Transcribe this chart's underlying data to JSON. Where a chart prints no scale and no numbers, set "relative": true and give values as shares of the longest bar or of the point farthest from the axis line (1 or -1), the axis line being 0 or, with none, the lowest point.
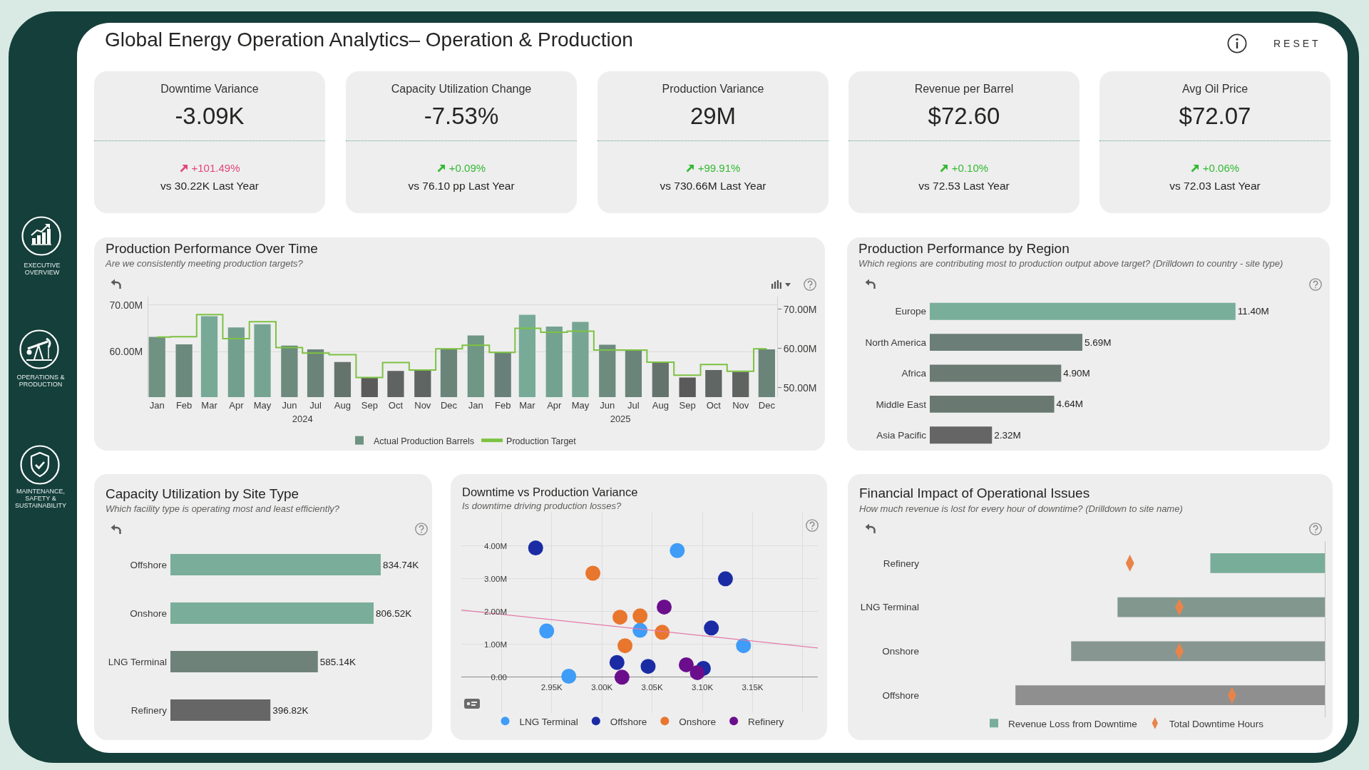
{
  "chart_data": [
    {
      "type": "other",
      "title": "Global Energy Operation Analytics– Operation & Production",
      "annotations": [
        "RESET",
        "EXECUTIVE OVERVIEW",
        "OPERATIONS & PRODUCTION",
        "MAINTENANCE, SAFETY & SUSTAINABILITY"
      ]
    },
    {
      "type": "other",
      "title": "Downtime Variance",
      "annotations": [
        "-3.09K",
        "+101.49%",
        "vs 30.22K Last Year"
      ]
    },
    {
      "type": "other",
      "title": "Capacity Utilization Change",
      "annotations": [
        "-7.53%",
        "+0.09%",
        "vs 76.10 pp Last Year"
      ]
    },
    {
      "type": "other",
      "title": "Production Variance",
      "annotations": [
        "29M",
        "+99.91%",
        "vs 730.66M Last Year"
      ]
    },
    {
      "type": "other",
      "title": "Revenue per Barrel",
      "annotations": [
        "$72.60",
        "+0.10%",
        "vs 72.53 Last Year"
      ]
    },
    {
      "type": "other",
      "title": "Avg Oil Price",
      "annotations": [
        "$72.07",
        "+0.06%",
        "vs 72.03 Last Year"
      ]
    },
    {
      "type": "bar",
      "title": "Production Performance Over Time",
      "subtitle": "Are we consistently meeting production targets?",
      "x": [
        "2024-01",
        "2024-02",
        "2024-03",
        "2024-04",
        "2024-05",
        "2024-06",
        "2024-07",
        "2024-08",
        "2024-09",
        "2024-10",
        "2024-11",
        "2024-12",
        "2025-01",
        "2025-02",
        "2025-03",
        "2025-04",
        "2025-05",
        "2025-06",
        "2025-07",
        "2025-08",
        "2025-09",
        "2025-10",
        "2025-11",
        "2025-12"
      ],
      "xlim": [
        "2023-12-22",
        "2025-12-13"
      ],
      "xticks": [
        {
          "value": "2024-01",
          "label": "Jan"
        },
        {
          "value": "2024-02",
          "label": "Feb"
        },
        {
          "value": "2024-03",
          "label": "Mar"
        },
        {
          "value": "2024-04",
          "label": "Apr"
        },
        {
          "value": "2024-05",
          "label": "May"
        },
        {
          "value": "2024-06",
          "label": "Jun"
        },
        {
          "value": "2024-07",
          "label": "Jul"
        },
        {
          "value": "2024-08",
          "label": "Aug"
        },
        {
          "value": "2024-09",
          "label": "Sep"
        },
        {
          "value": "2024-10",
          "label": "Oct"
        },
        {
          "value": "2024-11",
          "label": "Nov"
        },
        {
          "value": "2024-12",
          "label": "Dec"
        },
        {
          "value": "2025-01",
          "label": "Jan"
        },
        {
          "value": "2025-02",
          "label": "Feb"
        },
        {
          "value": "2025-03",
          "label": "Mar"
        },
        {
          "value": "2025-04",
          "label": "Apr"
        },
        {
          "value": "2025-05",
          "label": "May"
        },
        {
          "value": "2025-06",
          "label": "Jun"
        },
        {
          "value": "2025-07",
          "label": "Jul"
        },
        {
          "value": "2025-08",
          "label": "Aug"
        },
        {
          "value": "2025-09",
          "label": "Sep"
        },
        {
          "value": "2025-10",
          "label": "Oct"
        },
        {
          "value": "2025-11",
          "label": "Nov"
        },
        {
          "value": "2025-12",
          "label": "Dec"
        }
      ],
      "x2lim": [
        "2023-12-22",
        "2025-12-13"
      ],
      "x2ticks": [
        {
          "value": "2024-06-16",
          "label": "2024"
        },
        {
          "value": "2025-06-16",
          "label": "2025"
        }
      ],
      "ylim": [
        50.3,
        71.8
      ],
      "yticks": [
        {
          "value": 60,
          "label": "60.00M"
        },
        {
          "value": 70,
          "label": "70.00M"
        }
      ],
      "y2lim": [
        47.6,
        73.2
      ],
      "y2ticks": [
        {
          "value": 50,
          "label": "50.00M"
        },
        {
          "value": 60,
          "label": "60.00M"
        },
        {
          "value": 70,
          "label": "70.00M"
        }
      ],
      "series": [
        {
          "name": "Actual Production Barrels",
          "type": "bar",
          "colors": [
            "#6f9283",
            "#6b897c",
            "#77a996",
            "#73a08e",
            "#75a592",
            "#6c8a7d",
            "#6a8479",
            "#65736d",
            "#5a5a5a",
            "#5f6462",
            "#5f6562",
            "#6a8479",
            "#709685",
            "#69807a",
            "#78ab97",
            "#74a290",
            "#76a693",
            "#6d8c7f",
            "#6a8479",
            "#65736d",
            "#5a5a5a",
            "#606664",
            "#5f6461",
            "#6a8479"
          ],
          "values": [
            63.2,
            61.6,
            67.6,
            65.2,
            65.9,
            61.3,
            60.5,
            57.8,
            54.4,
            55.9,
            56.0,
            60.5,
            63.5,
            59.8,
            67.9,
            65.4,
            66.4,
            61.5,
            60.5,
            57.8,
            54.5,
            56.1,
            55.7,
            60.5
          ]
        },
        {
          "name": "Production Target",
          "type": "step",
          "axis": "y2",
          "color": "#7dc242",
          "values": [
            62.9,
            63.0,
            68.6,
            62.5,
            66.8,
            60.2,
            58.8,
            58.4,
            52.6,
            56.4,
            54.5,
            59.9,
            60.8,
            59.0,
            65.1,
            64.1,
            64.4,
            59.6,
            59.6,
            56.5,
            53.2,
            55.9,
            54.2,
            59.9
          ]
        }
      ],
      "grid": "y",
      "legend": "bottom"
    },
    {
      "type": "bar",
      "orientation": "horizontal",
      "title": "Production Performance by Region",
      "subtitle": "Which regions are contributing most to production output above target? (Drilldown to country - site type)",
      "categories": [
        "Europe",
        "North America",
        "Africa",
        "Middle East",
        "Asia Pacific"
      ],
      "values": [
        11.4,
        5.69,
        4.9,
        4.64,
        2.32
      ],
      "colors": [
        "#79ae9a",
        "#6b7e77",
        "#6b7b74",
        "#6a7872",
        "#656565"
      ],
      "value_labels": [
        "11.40M",
        "5.69M",
        "4.90M",
        "4.64M",
        "2.32M"
      ]
    },
    {
      "type": "bar",
      "orientation": "horizontal",
      "title": "Capacity Utilization by Site Type",
      "subtitle": "Which facility type is operating most and least efficiently?",
      "categories": [
        "Offshore",
        "Onshore",
        "LNG Terminal",
        "Refinery"
      ],
      "values": [
        834.74,
        806.52,
        585.14,
        396.82
      ],
      "colors": [
        "#7aae9a",
        "#7aae9a",
        "#6e8279",
        "#666666"
      ],
      "value_labels": [
        "834.74K",
        "806.52K",
        "585.14K",
        "396.82K"
      ]
    },
    {
      "type": "scatter",
      "title": "Downtime vs Production Variance",
      "subtitle": "Is downtime driving production losses?",
      "xlim": [
        2.86,
        3.215
      ],
      "xticks": [
        {
          "value": 2.9,
          "label": null
        },
        {
          "value": 2.95,
          "label": "2.95K"
        },
        {
          "value": 3.0,
          "label": "3.00K"
        },
        {
          "value": 3.05,
          "label": "3.05K"
        },
        {
          "value": 3.1,
          "label": "3.10K"
        },
        {
          "value": 3.15,
          "label": "3.15K"
        },
        {
          "value": 3.2,
          "label": null
        }
      ],
      "ylim": [
        -1.09,
        5.04
      ],
      "yticks": [
        {
          "value": 0,
          "label": "0.00"
        },
        {
          "value": 1,
          "label": "1.00M"
        },
        {
          "value": 2,
          "label": "2.00M"
        },
        {
          "value": 3,
          "label": "3.00M"
        },
        {
          "value": 4,
          "label": "4.00M"
        }
      ],
      "series": [
        {
          "name": "LNG Terminal",
          "color": "#3f9cf7",
          "x": [
            3.075,
            2.945,
            3.038,
            3.141,
            2.967
          ],
          "values": [
            3.86,
            1.41,
            1.43,
            0.96,
            0.03
          ]
        },
        {
          "name": "Offshore",
          "color": "#1a2ba3",
          "x": [
            2.934,
            3.123,
            3.109,
            3.015,
            3.046,
            3.101
          ],
          "values": [
            3.94,
            3.0,
            1.5,
            0.45,
            0.33,
            0.27
          ]
        },
        {
          "name": "Onshore",
          "color": "#e8762d",
          "x": [
            2.991,
            3.018,
            3.038,
            3.06,
            3.023
          ],
          "values": [
            3.17,
            1.83,
            1.87,
            1.37,
            0.96
          ]
        },
        {
          "name": "Refinery",
          "color": "#6b0e8c",
          "x": [
            3.062,
            3.02,
            3.084,
            3.095
          ],
          "values": [
            2.14,
            0.0,
            0.38,
            0.14
          ]
        },
        {
          "type": "line",
          "marker": "none",
          "color": "#e47aa8",
          "x": [
            2.86,
            3.215
          ],
          "values": [
            2.05,
            0.89
          ]
        }
      ],
      "marker": "circle",
      "grid": true,
      "legend": "bottom"
    },
    {
      "type": "bar",
      "orientation": "horizontal",
      "relative": true,
      "title": "Financial Impact of Operational Issues",
      "subtitle": "How much revenue is lost for every hour of downtime? (Drilldown to site name)",
      "categories": [
        "Refinery",
        "LNG Terminal",
        "Onshore",
        "Offshore"
      ],
      "series": [
        {
          "name": "Revenue Loss from Downtime",
          "type": "bar",
          "colors": [
            "#78ad99",
            "#82988f",
            "#879690",
            "#8f8f8f"
          ],
          "values": [
            -0.37,
            -0.67,
            -0.82,
            -1
          ]
        },
        {
          "name": "Total Downtime Hours",
          "type": "scatter",
          "color": "#e8844a",
          "values": [
            -0.63,
            -0.47,
            -0.47,
            -0.3
          ]
        }
      ],
      "legend": "bottom"
    }
  ]
}
